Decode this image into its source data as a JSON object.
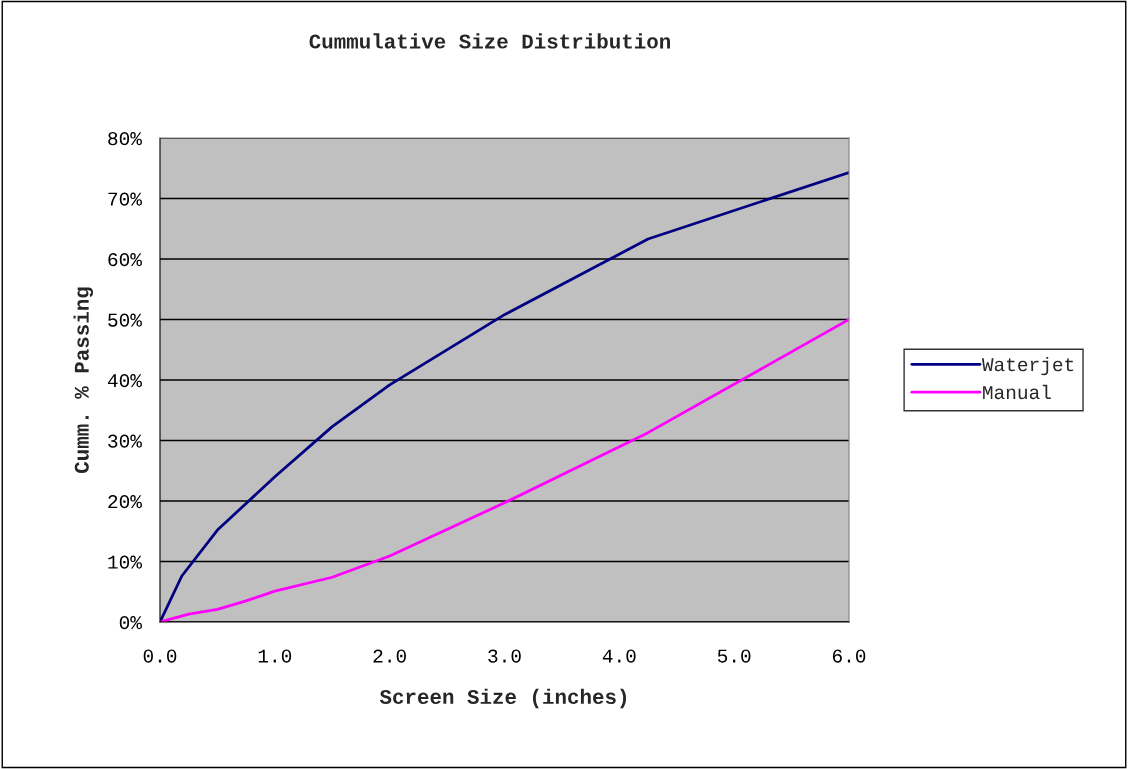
{
  "chart_data": {
    "type": "line",
    "title": "Cummulative Size Distribution",
    "xlabel": "Screen Size (inches)",
    "ylabel": "Cumm. % Passing",
    "series": [
      {
        "name": "Waterjet",
        "color": "#000080",
        "x": [
          0,
          0.19,
          0.5,
          1.0,
          1.5,
          2.0,
          3.0,
          4.25,
          6.0
        ],
        "values": [
          0,
          7.6,
          15.2,
          24,
          32.3,
          39.2,
          50.8,
          63.3,
          74.3
        ]
      },
      {
        "name": "Manual",
        "color": "#ff00ff",
        "x": [
          0,
          0.25,
          0.5,
          0.75,
          1.0,
          1.5,
          2.0,
          3.0,
          4.25,
          6.0
        ],
        "values": [
          0,
          1.3,
          2.1,
          3.5,
          5.1,
          7.4,
          10.9,
          19.7,
          31.3,
          50
        ]
      }
    ],
    "xlim": [
      0,
      6
    ],
    "xticks": [
      {
        "value": 0,
        "label": "0.0"
      },
      {
        "value": 1,
        "label": "1.0"
      },
      {
        "value": 2,
        "label": "2.0"
      },
      {
        "value": 3,
        "label": "3.0"
      },
      {
        "value": 4,
        "label": "4.0"
      },
      {
        "value": 5,
        "label": "5.0"
      },
      {
        "value": 6,
        "label": "6.0"
      }
    ],
    "ylim": [
      0,
      80
    ],
    "yticks": [
      {
        "value": 0,
        "label": "0%"
      },
      {
        "value": 10,
        "label": "10%"
      },
      {
        "value": 20,
        "label": "20%"
      },
      {
        "value": 30,
        "label": "30%"
      },
      {
        "value": 40,
        "label": "40%"
      },
      {
        "value": 50,
        "label": "50%"
      },
      {
        "value": 60,
        "label": "60%"
      },
      {
        "value": 70,
        "label": "70%"
      },
      {
        "value": 80,
        "label": "80%"
      }
    ],
    "grid": "y",
    "legend": "right",
    "marker": "none",
    "line_style": "solid"
  }
}
